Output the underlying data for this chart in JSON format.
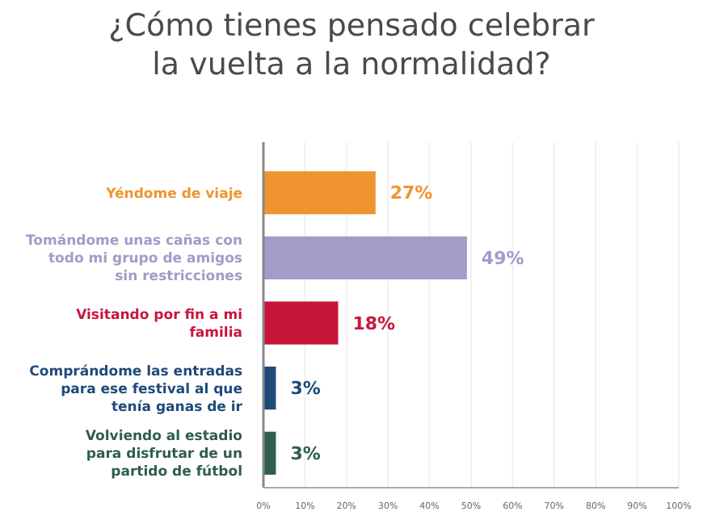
{
  "chart_data": {
    "type": "bar",
    "orientation": "horizontal",
    "title": "¿Cómo tienes pensado celebrar la vuelta a la normalidad?",
    "categories": [
      "Yéndome de viaje",
      "Tomándome unas cañas con todo mi grupo de amigos sin restricciones",
      "Visitando por fin a mi familia",
      "Comprándome las entradas para ese festival al que tenía ganas de ir",
      "Volviendo al estadio para disfrutar de un partido de fútbol"
    ],
    "values": [
      27,
      49,
      18,
      3,
      3
    ],
    "colors": [
      "#ef942f",
      "#a39bc8",
      "#c8163a",
      "#1f4a7a",
      "#2f5e4b"
    ],
    "value_labels": [
      "27%",
      "49%",
      "18%",
      "3%",
      "3%"
    ],
    "xlim": [
      0,
      100
    ],
    "xticks": [
      {
        "value": 0,
        "label": "0%"
      },
      {
        "value": 10,
        "label": "10%"
      },
      {
        "value": 20,
        "label": "20%"
      },
      {
        "value": 30,
        "label": "30%"
      },
      {
        "value": 40,
        "label": "40%"
      },
      {
        "value": 50,
        "label": "50%"
      },
      {
        "value": 60,
        "label": "60%"
      },
      {
        "value": 70,
        "label": "70%"
      },
      {
        "value": 80,
        "label": "80%"
      },
      {
        "value": 90,
        "label": "90%"
      },
      {
        "value": 100,
        "label": "100%"
      }
    ],
    "grid": "x"
  }
}
